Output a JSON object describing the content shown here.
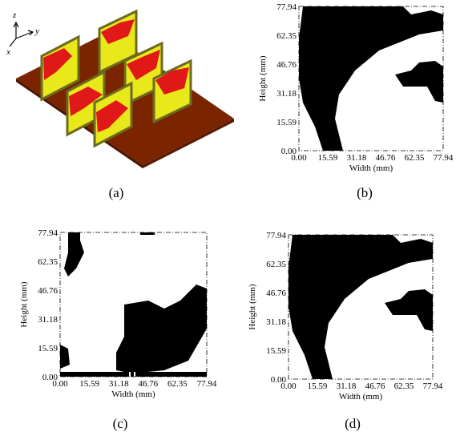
{
  "panels": [
    {
      "caption": "(a)",
      "axis_names": [
        "z",
        "y",
        "x"
      ]
    },
    {
      "caption": "(b)",
      "x_label": "Width (mm)",
      "y_label": "Height (mm)",
      "x_ticks": [
        "0.00",
        "15.59",
        "31.18",
        "46.76",
        "62.35",
        "77.94"
      ],
      "y_ticks": [
        "0.00",
        "15.59",
        "31.18",
        "46.76",
        "62.35",
        "77.94"
      ]
    },
    {
      "caption": "(c)",
      "x_label": "Width (mm)",
      "y_label": "Height (mm)",
      "x_ticks": [
        "0.00",
        "15.59",
        "31.18",
        "46.76",
        "62.35",
        "77.94"
      ],
      "y_ticks": [
        "0.00",
        "15.59",
        "31.18",
        "46.76",
        "62.35",
        "77.94"
      ]
    },
    {
      "caption": "(d)",
      "x_label": "Width (mm)",
      "y_label": "Height (mm)",
      "x_ticks": [
        "0.00",
        "15.59",
        "31.18",
        "46.76",
        "62.35",
        "77.94"
      ],
      "y_ticks": [
        "0.00",
        "15.59",
        "31.18",
        "46.76",
        "62.35",
        "77.94"
      ]
    }
  ]
}
